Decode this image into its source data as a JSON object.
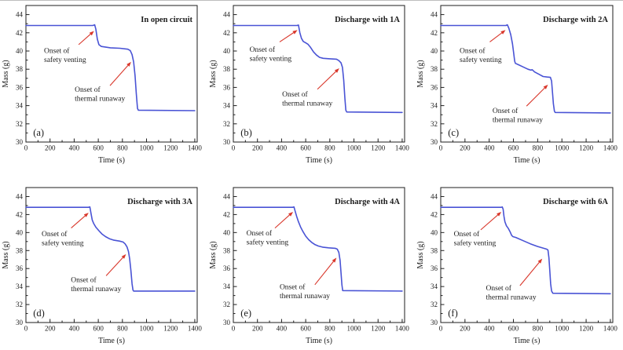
{
  "axes": {
    "xlabel": "Time (s)",
    "ylabel": "Mass (g)",
    "x_ticks": [
      0,
      200,
      400,
      600,
      800,
      1000,
      1200,
      1400
    ],
    "y_ticks": [
      30,
      32,
      34,
      36,
      38,
      40,
      42,
      44
    ],
    "x_minor_step": 100,
    "y_minor_step": 1,
    "x_range": [
      0,
      1420
    ],
    "y_range": [
      30,
      45
    ]
  },
  "colors": {
    "curve": "#4953d5",
    "annotation": "#d9372b",
    "axis": "#1c1c1c"
  },
  "chart_data": [
    {
      "type": "line",
      "panel": "(a)",
      "title": "In open circuit",
      "xlabel": "Time (s)",
      "ylabel": "Mass (g)",
      "x": [
        0,
        555,
        570,
        580,
        592,
        605,
        625,
        700,
        780,
        845,
        865,
        880,
        893,
        905,
        915,
        925,
        932,
        1400
      ],
      "y": [
        42.8,
        42.8,
        42.88,
        42.4,
        41.3,
        40.7,
        40.5,
        40.35,
        40.3,
        40.2,
        40.05,
        39.6,
        38.8,
        37.3,
        35.3,
        33.7,
        33.5,
        33.45
      ],
      "annotations": [
        {
          "lines": [
            "Onset of",
            "safety venting"
          ],
          "text_at": [
            150,
            40.1
          ],
          "arrow_from": [
            437,
            40.7
          ],
          "arrow_to": [
            565,
            42.2
          ]
        },
        {
          "lines": [
            "Onset of",
            "thermal runaway"
          ],
          "text_at": [
            405,
            35.8
          ],
          "arrow_from": [
            697,
            36.2
          ],
          "arrow_to": [
            872,
            38.8
          ]
        }
      ]
    },
    {
      "type": "line",
      "panel": "(b)",
      "title": "Discharge with 1A",
      "xlabel": "Time (s)",
      "ylabel": "Mass (g)",
      "x": [
        0,
        528,
        540,
        552,
        565,
        580,
        600,
        618,
        640,
        665,
        690,
        715,
        745,
        800,
        855,
        875,
        893,
        905,
        915,
        925,
        933,
        940,
        1400
      ],
      "y": [
        42.8,
        42.8,
        42.85,
        42.0,
        41.4,
        41.05,
        40.9,
        40.75,
        40.4,
        39.9,
        39.55,
        39.3,
        39.2,
        39.15,
        39.1,
        38.95,
        38.7,
        38.2,
        36.8,
        34.8,
        33.5,
        33.3,
        33.25
      ],
      "annotations": [
        {
          "lines": [
            "Onset of",
            "safety venting"
          ],
          "text_at": [
            134,
            40.2
          ],
          "arrow_from": [
            384,
            41.0
          ],
          "arrow_to": [
            532,
            42.3
          ]
        },
        {
          "lines": [
            "Onset of",
            "thermal runaway"
          ],
          "text_at": [
            405,
            35.3
          ],
          "arrow_from": [
            697,
            35.8
          ],
          "arrow_to": [
            878,
            38.1
          ]
        }
      ]
    },
    {
      "type": "line",
      "panel": "(c)",
      "title": "Discharge with 2A",
      "xlabel": "Time (s)",
      "ylabel": "Mass (g)",
      "x": [
        0,
        538,
        550,
        562,
        578,
        592,
        602,
        610,
        616,
        640,
        680,
        720,
        745,
        755,
        775,
        810,
        845,
        875,
        905,
        915,
        922,
        930,
        938,
        945,
        1400
      ],
      "y": [
        42.8,
        42.8,
        42.88,
        42.5,
        41.8,
        40.8,
        39.8,
        38.9,
        38.65,
        38.5,
        38.25,
        38.0,
        37.9,
        37.95,
        37.7,
        37.45,
        37.2,
        37.15,
        37.1,
        36.7,
        35.5,
        34.2,
        33.4,
        33.25,
        33.2
      ],
      "annotations": [
        {
          "lines": [
            "Onset of",
            "safety venting"
          ],
          "text_at": [
            156,
            40.1
          ],
          "arrow_from": [
            405,
            41.0
          ],
          "arrow_to": [
            535,
            42.3
          ]
        },
        {
          "lines": [
            "Onset of",
            "thermal runaway"
          ],
          "text_at": [
            427,
            33.5
          ],
          "arrow_from": [
            708,
            33.95
          ],
          "arrow_to": [
            885,
            36.3
          ]
        }
      ]
    },
    {
      "type": "line",
      "panel": "(d)",
      "title": "Discharge with 3A",
      "xlabel": "Time (s)",
      "ylabel": "Mass (g)",
      "x": [
        0,
        518,
        530,
        540,
        550,
        562,
        580,
        605,
        630,
        660,
        695,
        730,
        775,
        805,
        822,
        838,
        850,
        860,
        870,
        880,
        888,
        893,
        1400
      ],
      "y": [
        42.8,
        42.8,
        42.85,
        42.1,
        41.4,
        41.0,
        40.6,
        40.2,
        39.85,
        39.55,
        39.3,
        39.15,
        39.05,
        38.95,
        38.75,
        38.4,
        37.9,
        37.1,
        35.8,
        34.3,
        33.6,
        33.5,
        33.5
      ],
      "annotations": [
        {
          "lines": [
            "Onset of",
            "safety venting"
          ],
          "text_at": [
            130,
            39.9
          ],
          "arrow_from": [
            375,
            40.5
          ],
          "arrow_to": [
            520,
            42.2
          ]
        },
        {
          "lines": [
            "Onset of",
            "thermal runaway"
          ],
          "text_at": [
            373,
            34.8
          ],
          "arrow_from": [
            665,
            35.2
          ],
          "arrow_to": [
            830,
            37.6
          ]
        }
      ]
    },
    {
      "type": "line",
      "panel": "(e)",
      "title": "Discharge with 4A",
      "xlabel": "Time (s)",
      "ylabel": "Mass (g)",
      "x": [
        0,
        492,
        503,
        512,
        525,
        540,
        558,
        578,
        600,
        625,
        650,
        678,
        705,
        740,
        790,
        845,
        862,
        875,
        885,
        893,
        900,
        907,
        1400
      ],
      "y": [
        42.8,
        42.8,
        42.85,
        42.4,
        41.8,
        41.2,
        40.6,
        40.1,
        39.6,
        39.2,
        38.9,
        38.65,
        38.5,
        38.38,
        38.3,
        38.25,
        38.15,
        37.8,
        36.9,
        35.5,
        34.2,
        33.55,
        33.5
      ],
      "annotations": [
        {
          "lines": [
            "Onset of",
            "safety venting"
          ],
          "text_at": [
            108,
            40.0
          ],
          "arrow_from": [
            345,
            40.5
          ],
          "arrow_to": [
            495,
            42.3
          ]
        },
        {
          "lines": [
            "Onset of",
            "thermal runaway"
          ],
          "text_at": [
            384,
            34.0
          ],
          "arrow_from": [
            676,
            34.2
          ],
          "arrow_to": [
            855,
            37.2
          ]
        }
      ]
    },
    {
      "type": "line",
      "panel": "(f)",
      "title": "Discharge with 6A",
      "xlabel": "Time (s)",
      "ylabel": "Mass (g)",
      "x": [
        0,
        498,
        508,
        515,
        522,
        530,
        542,
        558,
        572,
        585,
        595,
        620,
        680,
        740,
        800,
        850,
        875,
        885,
        893,
        900,
        907,
        915,
        925,
        1400
      ],
      "y": [
        42.8,
        42.8,
        42.85,
        42.6,
        41.8,
        41.2,
        40.75,
        40.45,
        40.1,
        39.7,
        39.55,
        39.45,
        39.1,
        38.75,
        38.45,
        38.25,
        38.15,
        38.05,
        37.2,
        35.8,
        34.3,
        33.5,
        33.25,
        33.2
      ],
      "annotations": [
        {
          "lines": [
            "Onset of",
            "safety venting"
          ],
          "text_at": [
            108,
            39.9
          ],
          "arrow_from": [
            330,
            40.3
          ],
          "arrow_to": [
            500,
            42.3
          ]
        },
        {
          "lines": [
            "Onset of",
            "thermal runaway"
          ],
          "text_at": [
            373,
            33.9
          ],
          "arrow_from": [
            654,
            34.1
          ],
          "arrow_to": [
            838,
            37.1
          ]
        }
      ]
    }
  ]
}
